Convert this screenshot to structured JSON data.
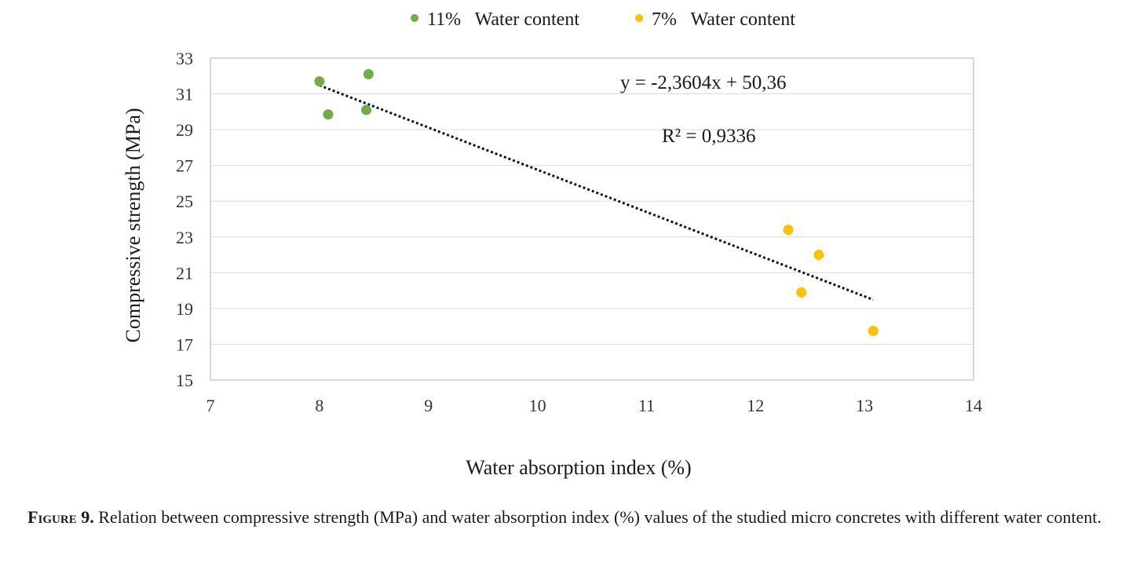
{
  "chart_data": {
    "type": "scatter",
    "xlabel": "Water absorption index (%)",
    "ylabel": "Compressive strength (MPa)",
    "xlim": [
      7,
      14
    ],
    "ylim": [
      15,
      33
    ],
    "xticks": [
      7,
      8,
      9,
      10,
      11,
      12,
      13,
      14
    ],
    "yticks": [
      15,
      17,
      19,
      21,
      23,
      25,
      27,
      29,
      31,
      33
    ],
    "grid": "horizontal",
    "legend_position": "top",
    "series": [
      {
        "name": "11%   Water content",
        "color": "#70ad47",
        "points": [
          [
            8.0,
            31.7
          ],
          [
            8.08,
            29.85
          ],
          [
            8.43,
            30.1
          ],
          [
            8.45,
            32.1
          ]
        ]
      },
      {
        "name": "7%   Water content",
        "color": "#ffc000",
        "points": [
          [
            12.3,
            23.4
          ],
          [
            12.42,
            19.9
          ],
          [
            12.58,
            22.0
          ],
          [
            13.08,
            17.75
          ]
        ]
      }
    ],
    "trendline": {
      "style": "dotted",
      "color": "#111111",
      "slope": -2.3604,
      "intercept": 50.36,
      "x_range": [
        8.0,
        13.08
      ]
    },
    "annotations": {
      "equation": "y = -2,3604x + 50,36",
      "r2": "R² = 0,9336"
    }
  },
  "caption": {
    "label": "Figure 9.",
    "text": " Relation between compressive strength (MPa) and water absorption index (%) values of the studied micro concretes with different water content."
  }
}
